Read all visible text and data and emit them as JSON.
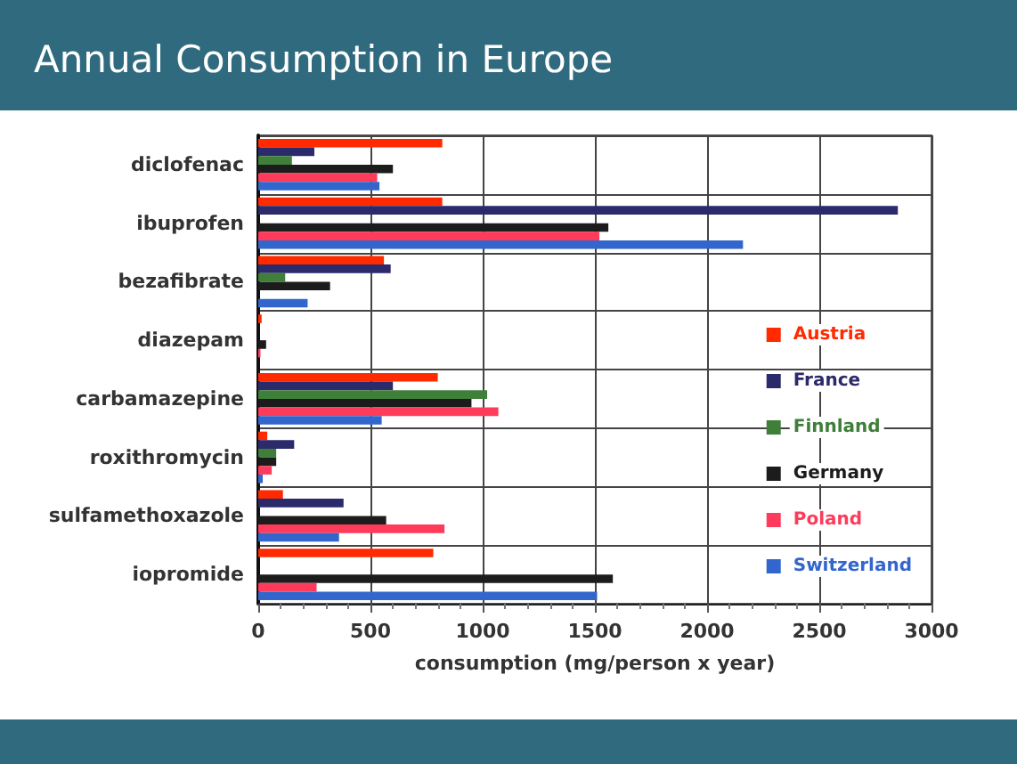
{
  "chart_data": {
    "type": "bar",
    "orientation": "horizontal",
    "title": "Annual Consumption in Europe",
    "xlabel": "consumption (mg/person x year)",
    "categories": [
      "diclofenac",
      "ibuprofen",
      "bezafibrate",
      "diazepam",
      "carbamazepine",
      "roxithromycin",
      "sulfamethoxazole",
      "iopromide"
    ],
    "series": [
      {
        "name": "Austria",
        "color": "#ff2a00",
        "values": [
          820,
          820,
          560,
          15,
          800,
          40,
          110,
          780
        ]
      },
      {
        "name": "France",
        "color": "#2b2a6b",
        "values": [
          250,
          2850,
          590,
          null,
          600,
          160,
          380,
          null
        ]
      },
      {
        "name": "Finnland",
        "color": "#3f7f3a",
        "values": [
          150,
          null,
          120,
          null,
          1020,
          80,
          null,
          null
        ]
      },
      {
        "name": "Germany",
        "color": "#1c1c1c",
        "values": [
          600,
          1560,
          320,
          35,
          950,
          80,
          570,
          1580
        ]
      },
      {
        "name": "Poland",
        "color": "#ff3b5c",
        "values": [
          530,
          1520,
          null,
          10,
          1070,
          60,
          830,
          260
        ]
      },
      {
        "name": "Switzerland",
        "color": "#3366cc",
        "values": [
          540,
          2160,
          220,
          null,
          550,
          20,
          360,
          1510
        ]
      }
    ],
    "xlim": [
      0,
      3000
    ],
    "xticks": [
      0,
      500,
      1000,
      1500,
      2000,
      2500,
      3000
    ],
    "grid": true,
    "legend": "bottom right"
  }
}
